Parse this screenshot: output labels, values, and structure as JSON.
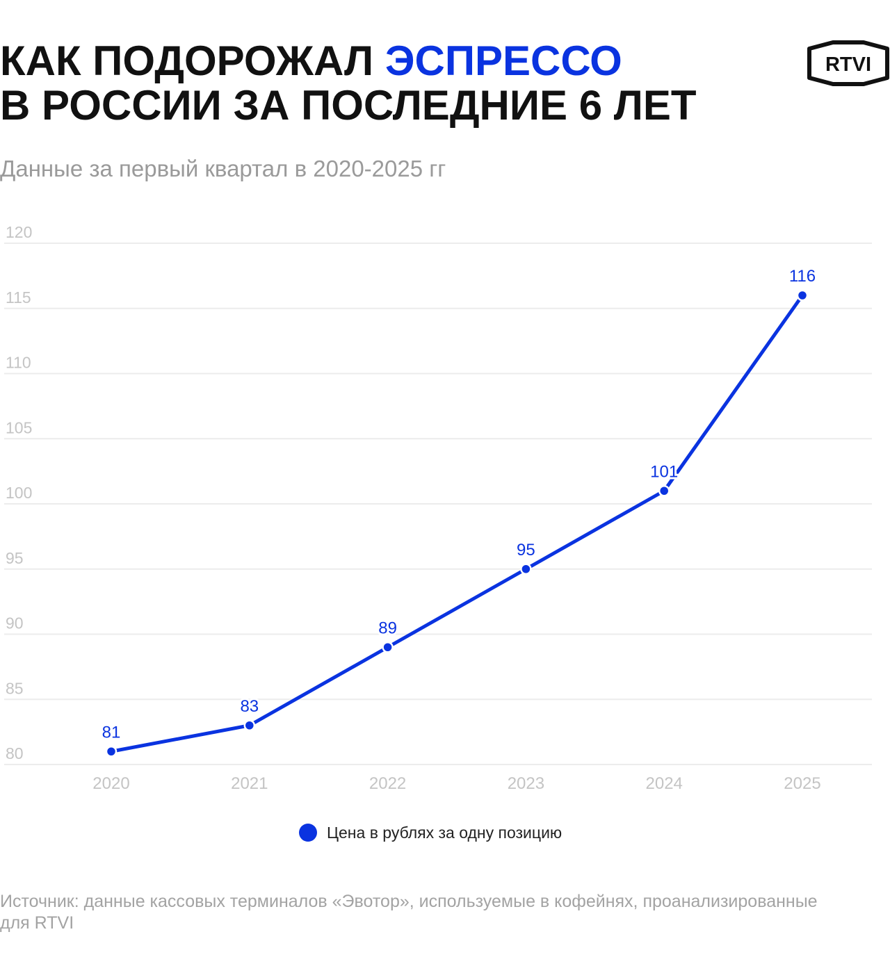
{
  "header": {
    "title_part1": "КАК ПОДОРОЖАЛ ",
    "title_accent": "ЭСПРЕССО",
    "title_part2": "В РОССИИ ЗА ПОСЛЕДНИЕ 6 ЛЕТ",
    "subtitle": "Данные за первый квартал в 2020-2025 гг",
    "logo_text": "RTVI"
  },
  "colors": {
    "accent": "#0a33e0",
    "grid": "#ececec",
    "tick": "#c4c4c4"
  },
  "chart_data": {
    "type": "line",
    "x": [
      "2020",
      "2021",
      "2022",
      "2023",
      "2024",
      "2025"
    ],
    "series": [
      {
        "name": "Цена в рублях за одну позицию",
        "values": [
          81,
          83,
          89,
          95,
          101,
          116
        ]
      }
    ],
    "yticks": [
      80,
      85,
      90,
      95,
      100,
      105,
      110,
      115,
      120
    ],
    "ylim": [
      80,
      120
    ],
    "grid": true,
    "legend_position": "bottom-center",
    "data_labels": true
  },
  "footer": {
    "source": "Источник: данные кассовых терминалов «Эвотор», используемые в кофейнях, проанализированные для RTVI"
  }
}
